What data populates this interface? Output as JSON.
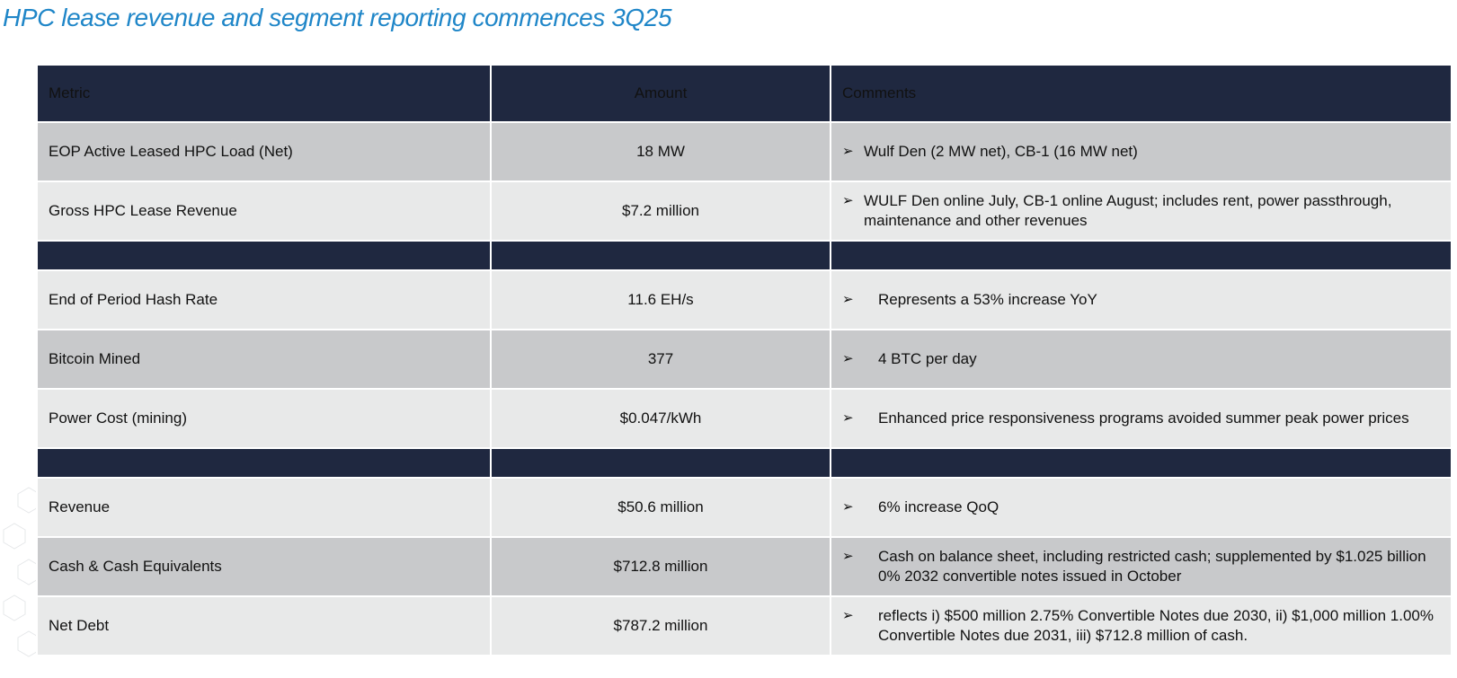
{
  "title": "HPC lease revenue and segment reporting commences 3Q25",
  "table": {
    "headers": {
      "metric": "Metric",
      "amount": "Amount",
      "comments": "Comments"
    },
    "rows": [
      {
        "metric": "EOP Active Leased HPC Load (Net)",
        "amount": "18 MW",
        "comment": "Wulf Den (2 MW net), CB-1 (16 MW net)"
      },
      {
        "metric": "Gross HPC Lease Revenue",
        "amount": "$7.2 million",
        "comment": "WULF Den online July, CB-1 online August; includes rent, power passthrough, maintenance and other revenues"
      },
      {
        "metric": "End of Period Hash Rate",
        "amount": "11.6 EH/s",
        "comment": "Represents a 53% increase YoY"
      },
      {
        "metric": "Bitcoin Mined",
        "amount": "377",
        "comment": "4 BTC per day"
      },
      {
        "metric": "Power Cost (mining)",
        "amount": "$0.047/kWh",
        "comment": "Enhanced price responsiveness programs avoided summer peak power prices"
      },
      {
        "metric": "Revenue",
        "amount": "$50.6 million",
        "comment": "6% increase QoQ"
      },
      {
        "metric": "Cash & Cash Equivalents",
        "amount": "$712.8 million",
        "comment": "Cash on balance sheet, including restricted cash; supplemented by $1.025 billion 0% 2032 convertible notes issued in October"
      },
      {
        "metric": "Net Debt",
        "amount": "$787.2 million",
        "comment": "reflects i) $500 million 2.75% Convertible Notes due 2030, ii) $1,000 million 1.00% Convertible Notes due 2031, iii) $712.8 million of cash."
      }
    ]
  },
  "bullet_glyph": "➢",
  "colors": {
    "header_bg": "#1f2840",
    "title": "#1f86c8",
    "row_light": "#e8e9e9",
    "row_dark": "#c8c9cb"
  }
}
